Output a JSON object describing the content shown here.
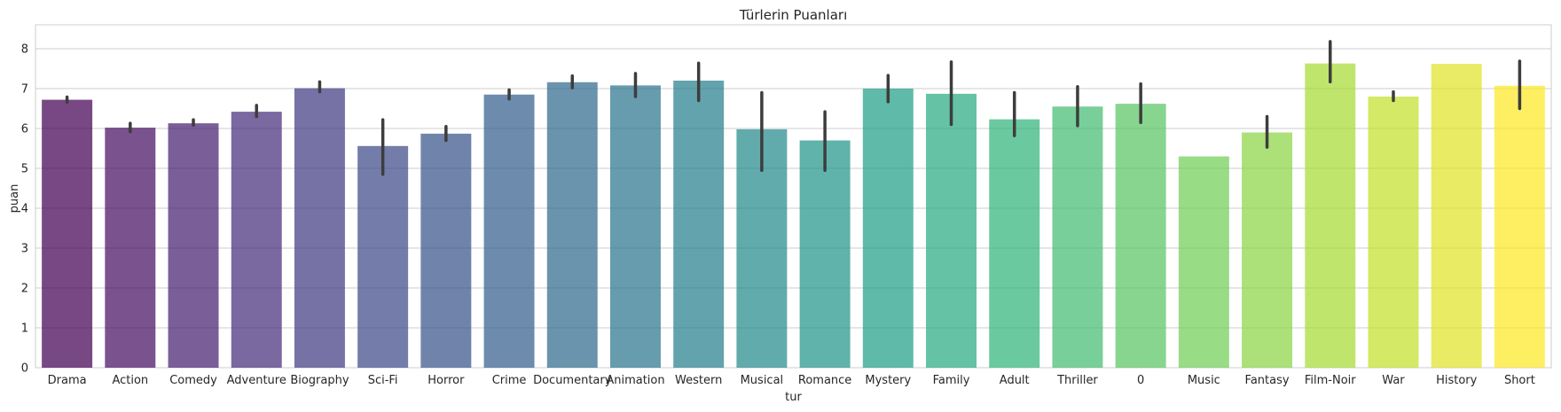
{
  "chart_data": {
    "type": "bar",
    "title": "Türlerin Puanları",
    "xlabel": "tur",
    "ylabel": "puan",
    "ylim": [
      0,
      8.6
    ],
    "yticks": [
      0,
      1,
      2,
      3,
      4,
      5,
      6,
      7,
      8
    ],
    "grid": "horizontal",
    "palette": "viridis",
    "categories": [
      "Drama",
      "Action",
      "Comedy",
      "Adventure",
      "Biography",
      "Sci-Fi",
      "Horror",
      "Crime",
      "Documentary",
      "Animation",
      "Western",
      "Musical",
      "Romance",
      "Mystery",
      "Family",
      "Adult",
      "Thriller",
      "0",
      "Music",
      "Fantasy",
      "Film-Noir",
      "War",
      "History",
      "Short"
    ],
    "values": [
      6.72,
      6.02,
      6.13,
      6.42,
      7.01,
      5.56,
      5.87,
      6.85,
      7.16,
      7.08,
      7.2,
      5.98,
      5.7,
      7.0,
      6.87,
      6.23,
      6.55,
      6.62,
      5.3,
      5.9,
      7.63,
      6.8,
      7.62,
      7.07
    ],
    "error_low": [
      6.66,
      5.92,
      6.08,
      6.3,
      6.92,
      4.85,
      5.7,
      6.74,
      7.02,
      6.8,
      6.7,
      4.95,
      4.95,
      6.67,
      6.1,
      5.82,
      6.07,
      6.15,
      null,
      5.53,
      7.17,
      6.7,
      null,
      6.5
    ],
    "error_high": [
      6.79,
      6.13,
      6.22,
      6.58,
      7.17,
      6.22,
      6.05,
      6.97,
      7.32,
      7.38,
      7.64,
      6.9,
      6.42,
      7.33,
      7.67,
      6.9,
      7.05,
      7.12,
      null,
      6.3,
      8.18,
      6.92,
      null,
      7.69
    ]
  }
}
